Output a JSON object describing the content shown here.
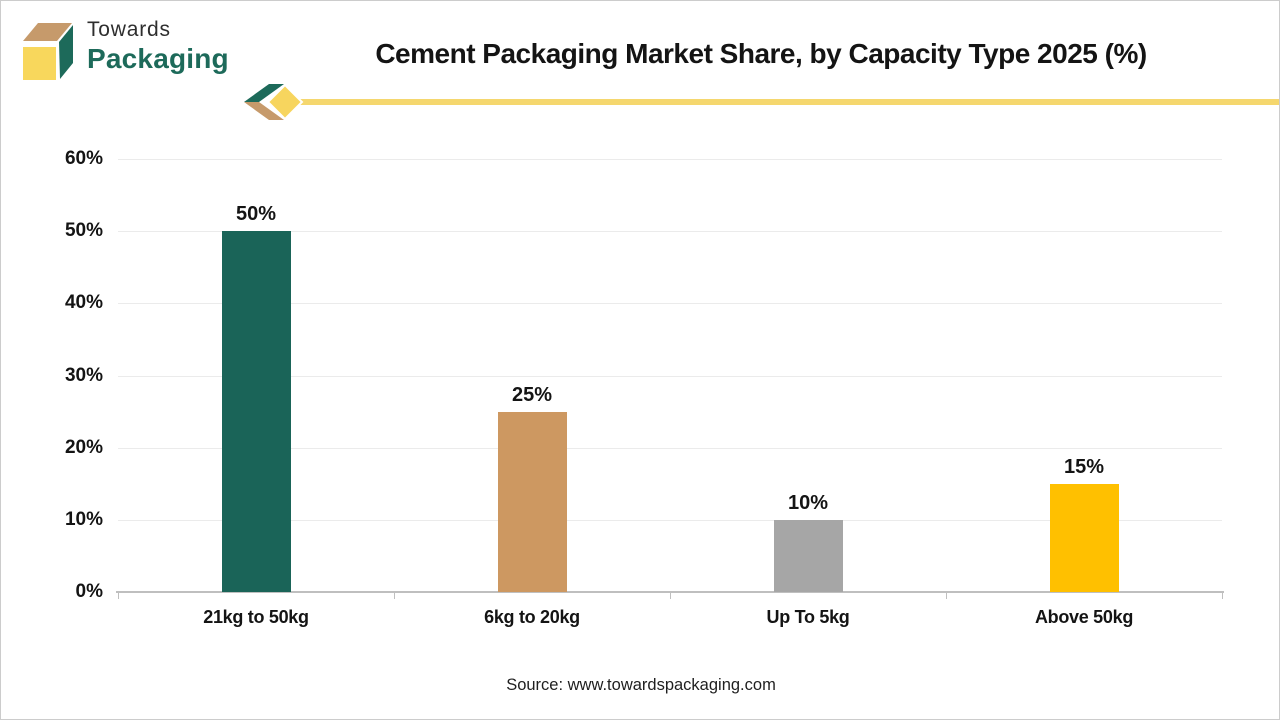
{
  "brand": {
    "name_top": "Towards",
    "name_bottom": "Packaging"
  },
  "header": {
    "title": "Cement Packaging Market Share, by Capacity Type 2025 (%)"
  },
  "chart_data": {
    "type": "bar",
    "title": "Cement Packaging Market Share, by Capacity Type 2025 (%)",
    "categories": [
      "21kg to 50kg",
      "6kg to 20kg",
      "Up To 5kg",
      "Above 50kg"
    ],
    "values": [
      50,
      25,
      10,
      15
    ],
    "data_labels": [
      "50%",
      "25%",
      "10%",
      "15%"
    ],
    "bar_colors": [
      "#1a6458",
      "#cd9861",
      "#a6a6a6",
      "#ffc000"
    ],
    "xlabel": "",
    "ylabel": "",
    "ylim": [
      0,
      60
    ],
    "yticks": [
      0,
      10,
      20,
      30,
      40,
      50,
      60
    ],
    "ytick_labels": [
      "0%",
      "10%",
      "20%",
      "30%",
      "40%",
      "50%",
      "60%"
    ],
    "grid": true,
    "legend": "none"
  },
  "footer": {
    "source": "Source: www.towardspackaging.com"
  },
  "colors": {
    "accent_line_yellow": "#f5d76e",
    "logo_green": "#1d6a5a",
    "logo_tan": "#c69a6b",
    "logo_yellow": "#f8d75c",
    "diamond_yellow": "#f7d55e",
    "axis_gray": "#bfbfbf",
    "grid_gray": "#ebebeb"
  }
}
